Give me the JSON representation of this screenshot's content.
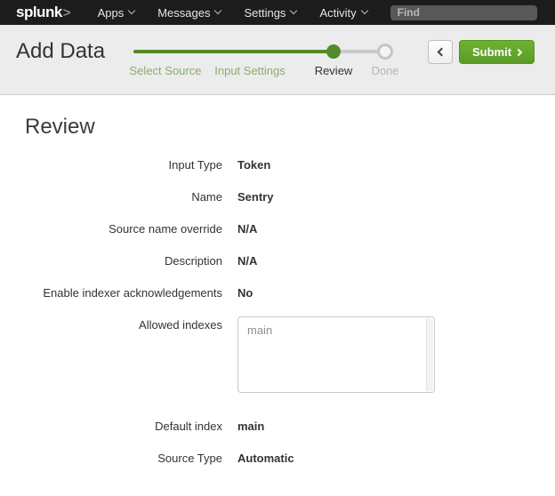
{
  "topnav": {
    "logo_text": "splunk",
    "logo_chevron": ">",
    "items": [
      {
        "label": "Apps"
      },
      {
        "label": "Messages"
      },
      {
        "label": "Settings"
      },
      {
        "label": "Activity"
      }
    ],
    "find_placeholder": "Find"
  },
  "header": {
    "title": "Add Data",
    "submit_label": "Submit",
    "steps": [
      {
        "label": "Select Source",
        "state": "complete"
      },
      {
        "label": "Input Settings",
        "state": "complete"
      },
      {
        "label": "Review",
        "state": "current"
      },
      {
        "label": "Done",
        "state": "upcoming"
      }
    ]
  },
  "icons": {
    "nav_caret": "caret-down",
    "back": "chevron-left",
    "submit": "chevron-right"
  },
  "review": {
    "heading": "Review",
    "fields": [
      {
        "label": "Input Type",
        "value": "Token"
      },
      {
        "label": "Name",
        "value": "Sentry"
      },
      {
        "label": "Source name override",
        "value": "N/A"
      },
      {
        "label": "Description",
        "value": "N/A"
      },
      {
        "label": "Enable indexer acknowledgements",
        "value": "No"
      },
      {
        "label": "Allowed indexes",
        "value": "main",
        "control": "listbox"
      },
      {
        "label": "Default index",
        "value": "main"
      },
      {
        "label": "Source Type",
        "value": "Automatic"
      }
    ]
  },
  "colors": {
    "brand_green": "#65a637",
    "progress_green": "#538a2b",
    "step_complete_text": "#8cab6d",
    "topnav_bg": "#1c1c1c",
    "header_bg": "#ececec",
    "submit_green": "#5b9c28"
  }
}
